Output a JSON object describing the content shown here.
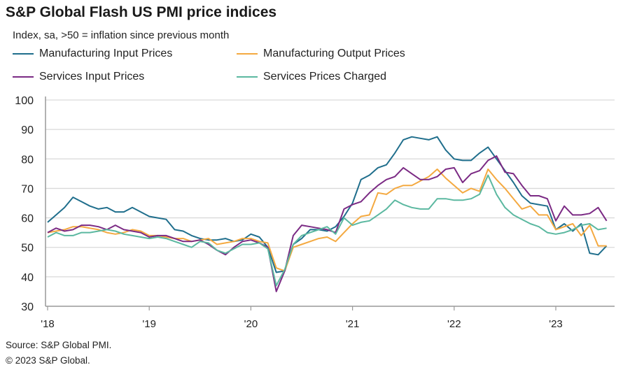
{
  "chart_data": {
    "type": "line",
    "title": "S&P Global Flash US PMI price indices",
    "subtitle": "Index, sa, >50 = inflation since previous month",
    "ylim": [
      30,
      100
    ],
    "yticks": [
      30,
      40,
      50,
      60,
      70,
      80,
      90,
      100
    ],
    "xstart": "2018-01",
    "xend": "2023-07",
    "xtick_labels": [
      "'18",
      "'19",
      "'20",
      "'21",
      "'22",
      "'23"
    ],
    "grid": true,
    "legend_position": "top",
    "series": [
      {
        "name": "Manufacturing Input Prices",
        "color": "#1f6e8c",
        "values": [
          58.5,
          61,
          63.5,
          67,
          65.5,
          64,
          63,
          63.5,
          62,
          62,
          63.5,
          62,
          60.5,
          60,
          59.5,
          56,
          55.5,
          54,
          53,
          52.5,
          52.5,
          53,
          52,
          52.5,
          54.5,
          53.5,
          50,
          41.5,
          42,
          51,
          53,
          56,
          56,
          55.5,
          57,
          60.5,
          65,
          73,
          74.5,
          77,
          78,
          82,
          86.5,
          87.5,
          87,
          86.5,
          87.5,
          83,
          80,
          79.5,
          79.5,
          82,
          84,
          80,
          76,
          72,
          67.5,
          65,
          64.5,
          64,
          56,
          58,
          55.5,
          58,
          48,
          47.5,
          50.5
        ]
      },
      {
        "name": "Manufacturing Output Prices",
        "color": "#f4a940",
        "values": [
          55,
          55.5,
          56,
          57,
          57,
          56.5,
          56,
          55,
          54.5,
          55,
          56,
          55.5,
          54,
          54,
          53.5,
          53,
          53,
          52,
          52.5,
          53,
          51,
          51.5,
          52,
          53,
          53,
          52,
          51.5,
          43,
          42,
          50,
          51,
          52,
          53,
          53.5,
          52,
          55,
          58,
          60.5,
          61,
          68.5,
          68,
          70,
          71,
          71,
          72.5,
          74,
          76.5,
          73.5,
          71,
          68.5,
          70,
          69,
          76.5,
          73,
          70,
          66.5,
          63,
          64,
          61,
          61,
          56,
          57,
          58,
          54,
          57.5,
          50.5,
          50.5
        ]
      },
      {
        "name": "Services Input Prices",
        "color": "#7b2a84",
        "values": [
          55,
          56.5,
          55.5,
          56,
          57.5,
          57.5,
          57,
          56,
          57.5,
          56,
          55.5,
          55,
          53.5,
          54,
          54,
          53,
          52,
          52,
          52.5,
          51,
          49,
          47.5,
          50,
          52,
          52.5,
          51.5,
          50,
          35,
          42,
          54,
          57.5,
          57,
          56.5,
          56,
          55,
          63,
          64.5,
          65.5,
          68.5,
          71,
          73,
          74,
          77,
          75,
          73,
          73,
          74,
          76.5,
          77,
          72,
          75,
          76,
          79.5,
          81,
          75.5,
          75,
          71,
          67.5,
          67.5,
          66.5,
          59,
          64,
          61,
          61,
          61.5,
          63.5,
          59
        ]
      },
      {
        "name": "Services Prices Charged",
        "color": "#5bb8a0",
        "values": [
          53.5,
          55,
          54,
          54,
          55,
          55,
          55.5,
          56,
          55.5,
          54.5,
          54,
          53.5,
          53,
          53.5,
          53,
          52,
          51,
          50,
          52,
          51.5,
          49,
          48,
          49.5,
          51,
          51,
          51.5,
          49.5,
          37,
          42.5,
          51,
          54,
          55,
          56,
          57,
          54.5,
          60,
          57.5,
          58.5,
          59,
          61,
          63,
          66,
          64.5,
          63.5,
          63,
          63,
          66.5,
          66.5,
          66,
          66,
          66.5,
          68,
          74.5,
          68,
          63.5,
          61,
          59.5,
          58,
          57,
          55,
          54.5,
          55,
          56,
          57.5,
          58,
          56,
          56.5
        ]
      }
    ]
  },
  "footer": {
    "source": "Source: S&P Global PMI.",
    "copyright": "© 2023 S&P Global."
  }
}
